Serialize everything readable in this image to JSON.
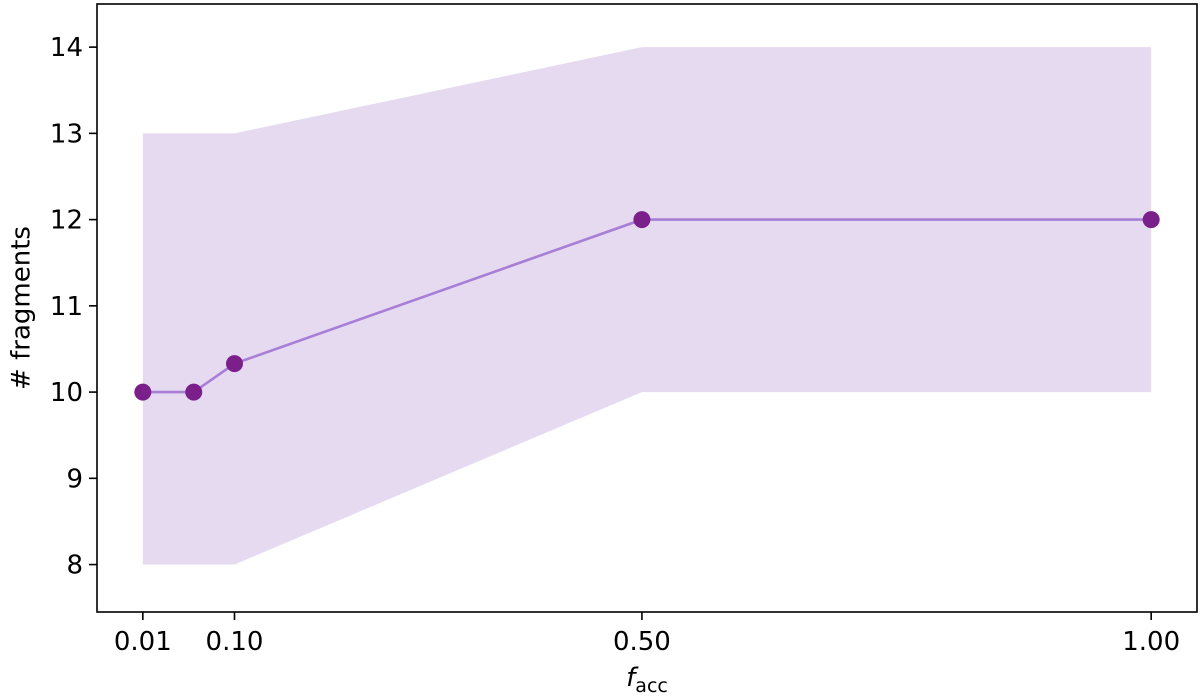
{
  "chart_data": {
    "type": "line",
    "title": "",
    "xlabel": "f",
    "xlabel_subscript": "acc",
    "ylabel": "# fragments",
    "xlim": [
      -0.035,
      1.045
    ],
    "ylim": [
      7.45,
      14.5
    ],
    "x_ticks": [
      {
        "value": 0.01,
        "label": "0.01"
      },
      {
        "value": 0.1,
        "label": "0.10"
      },
      {
        "value": 0.5,
        "label": "0.50"
      },
      {
        "value": 1.0,
        "label": "1.00"
      }
    ],
    "y_ticks": [
      {
        "value": 8,
        "label": "8"
      },
      {
        "value": 9,
        "label": "9"
      },
      {
        "value": 10,
        "label": "10"
      },
      {
        "value": 11,
        "label": "11"
      },
      {
        "value": 12,
        "label": "12"
      },
      {
        "value": 13,
        "label": "13"
      },
      {
        "value": 14,
        "label": "14"
      }
    ],
    "grid": false,
    "legend": "none",
    "series": [
      {
        "x": [
          0.01,
          0.06,
          0.1,
          0.5,
          1.0
        ],
        "y": [
          10.0,
          10.0,
          10.33,
          12.0,
          12.0
        ],
        "band_low": [
          8.0,
          8.0,
          8.0,
          10.0,
          10.0
        ],
        "band_high": [
          13.0,
          13.0,
          13.0,
          14.0,
          14.0
        ],
        "line_color": "#a87fd6",
        "marker_color": "#7b1f8a",
        "band_color": "#e6daf1"
      }
    ]
  }
}
